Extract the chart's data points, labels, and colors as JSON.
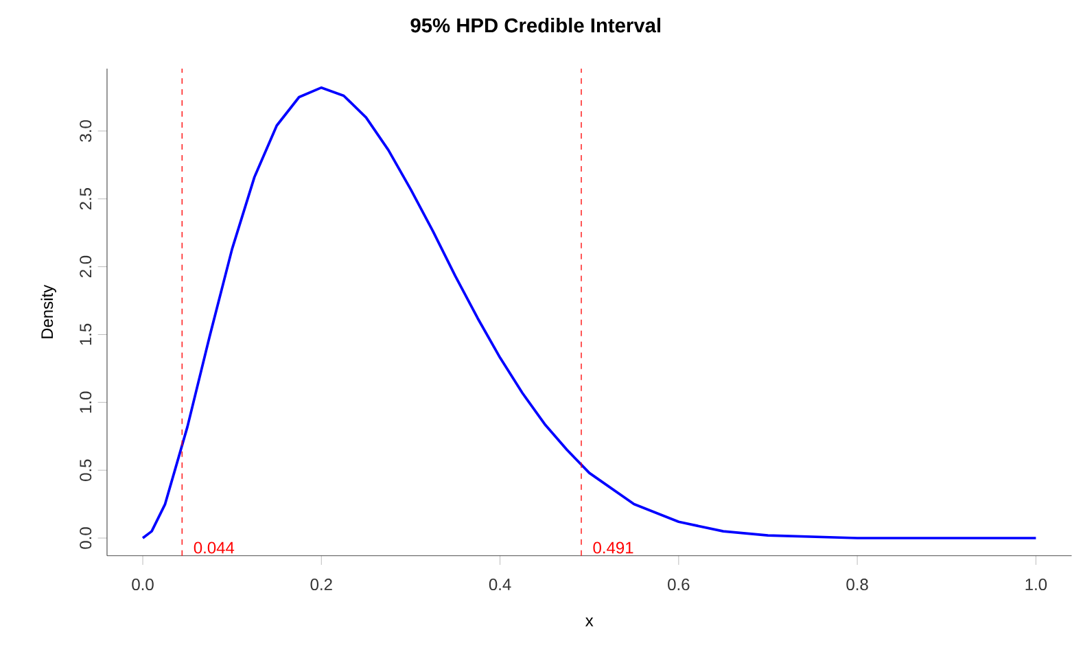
{
  "chart_data": {
    "type": "line",
    "title": "95% HPD Credible Interval",
    "xlabel": "x",
    "ylabel": "Density",
    "x": [
      0,
      0.01,
      0.025,
      0.05,
      0.075,
      0.1,
      0.125,
      0.15,
      0.175,
      0.2,
      0.225,
      0.25,
      0.275,
      0.3,
      0.325,
      0.35,
      0.375,
      0.4,
      0.425,
      0.45,
      0.475,
      0.5,
      0.55,
      0.6,
      0.65,
      0.7,
      0.8,
      0.9,
      1.0
    ],
    "series": [
      {
        "color": "#0000ff",
        "values": [
          0,
          0.05,
          0.25,
          0.82,
          1.49,
          2.13,
          2.66,
          3.04,
          3.25,
          3.32,
          3.26,
          3.1,
          2.86,
          2.57,
          2.26,
          1.93,
          1.62,
          1.33,
          1.07,
          0.84,
          0.65,
          0.48,
          0.25,
          0.12,
          0.05,
          0.02,
          0,
          0,
          0
        ]
      }
    ],
    "xlim": [
      -0.04,
      1.04
    ],
    "ylim": [
      -0.13,
      3.46
    ],
    "xticks": [
      {
        "value": 0,
        "label": "0.0"
      },
      0.2,
      0.4,
      0.6,
      0.8,
      {
        "value": 1,
        "label": "1.0"
      }
    ],
    "yticks": [
      {
        "value": 0,
        "label": "0.0"
      },
      0.5,
      {
        "value": 1,
        "label": "1.0"
      },
      1.5,
      {
        "value": 2,
        "label": "2.0"
      },
      2.5,
      {
        "value": 3,
        "label": "3.0"
      }
    ],
    "ref_lines": [
      {
        "axis": "x",
        "value": 0.044,
        "label": "0.044",
        "color": "#ff0000",
        "line_style": "dashed"
      },
      {
        "axis": "x",
        "value": 0.491,
        "label": "0.491",
        "color": "#ff0000",
        "line_style": "dashed"
      }
    ],
    "marker": "none",
    "line_style": "solid"
  }
}
